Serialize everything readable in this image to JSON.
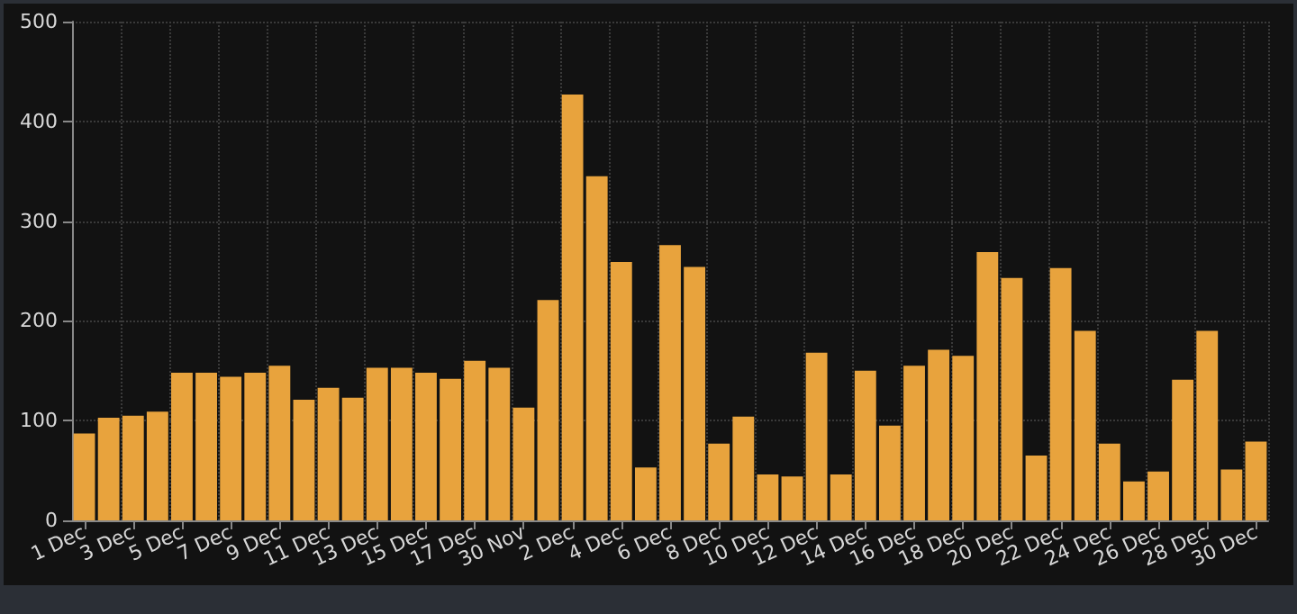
{
  "chart_data": {
    "type": "bar",
    "categories": [
      "1 Dec",
      null,
      "3 Dec",
      null,
      "5 Dec",
      null,
      "7 Dec",
      null,
      "9 Dec",
      null,
      "11 Dec",
      null,
      "13 Dec",
      null,
      "15 Dec",
      null,
      "17 Dec",
      null,
      "30 Nov",
      null,
      "2 Dec",
      null,
      "4 Dec",
      null,
      "6 Dec",
      null,
      "8 Dec",
      null,
      "10 Dec",
      null,
      "12 Dec",
      null,
      "14 Dec",
      null,
      "16 Dec",
      null,
      "18 Dec",
      null,
      "20 Dec",
      null,
      "22 Dec",
      null,
      "24 Dec",
      null,
      "26 Dec",
      null,
      "28 Dec",
      null,
      "30 Dec"
    ],
    "values": [
      87,
      103,
      105,
      109,
      148,
      148,
      144,
      148,
      155,
      121,
      133,
      123,
      153,
      153,
      148,
      142,
      160,
      153,
      113,
      221,
      427,
      345,
      259,
      53,
      276,
      254,
      77,
      104,
      46,
      44,
      168,
      46,
      150,
      95,
      155,
      171,
      165,
      269,
      243,
      65,
      253,
      190,
      77,
      39,
      49,
      141,
      190,
      51,
      79
    ],
    "color": "#e8a33d",
    "ylim": [
      0,
      500
    ],
    "yticks": [
      0,
      100,
      200,
      300,
      400,
      500
    ],
    "grid": true
  }
}
